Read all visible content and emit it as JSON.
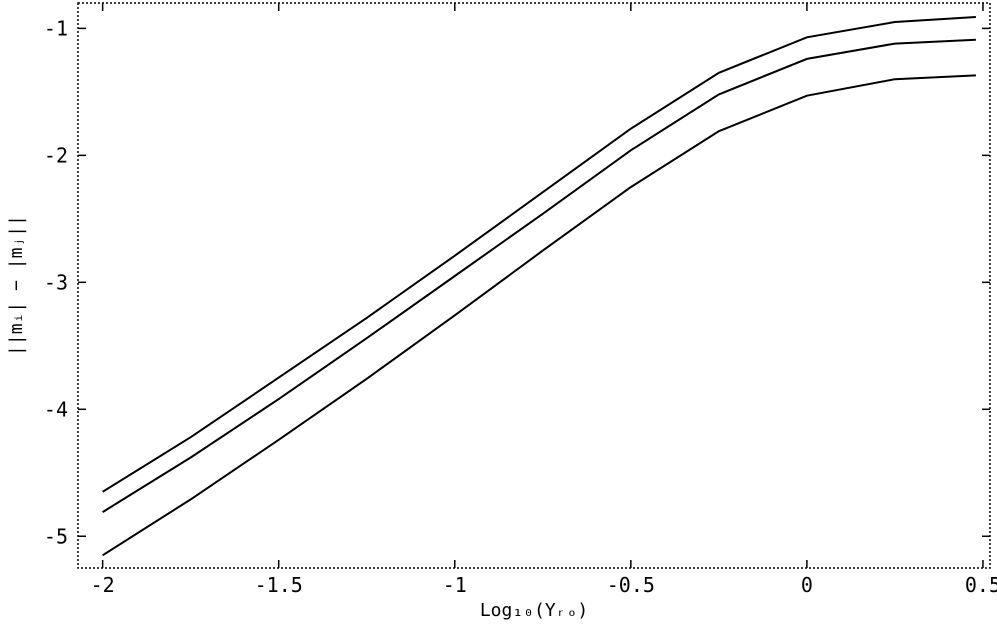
{
  "chart_data": {
    "type": "line",
    "xlabel": "Log₁₀(Yᵣₒ)",
    "ylabel": "||mᵢ| − |mⱼ||",
    "xlim": [
      -2.07,
      0.52
    ],
    "ylim": [
      -5.25,
      -0.8
    ],
    "x_ticks": [
      -2,
      -1.5,
      -1,
      -0.5,
      0,
      0.5
    ],
    "x_tick_labels": [
      "-2",
      "-1.5",
      "-1",
      "-0.5",
      "0",
      "0.5"
    ],
    "y_ticks": [
      -5,
      -4,
      -3,
      -2,
      -1
    ],
    "y_tick_labels": [
      "-5",
      "-4",
      "-3",
      "-2",
      "-1"
    ],
    "grid": false,
    "series": [
      {
        "x": [
          -2.0,
          -1.75,
          -1.5,
          -1.25,
          -1.0,
          -0.75,
          -0.5,
          -0.25,
          0.0,
          0.25,
          0.48
        ],
        "values": [
          -4.65,
          -4.22,
          -3.75,
          -3.28,
          -2.79,
          -2.29,
          -1.79,
          -1.35,
          -1.07,
          -0.95,
          -0.91
        ]
      },
      {
        "x": [
          -2.0,
          -1.75,
          -1.5,
          -1.25,
          -1.0,
          -0.75,
          -0.5,
          -0.25,
          0.0,
          0.25,
          0.48
        ],
        "values": [
          -4.81,
          -4.38,
          -3.92,
          -3.44,
          -2.95,
          -2.46,
          -1.96,
          -1.52,
          -1.24,
          -1.12,
          -1.09
        ]
      },
      {
        "x": [
          -2.0,
          -1.75,
          -1.5,
          -1.25,
          -1.0,
          -0.75,
          -0.5,
          -0.25,
          0.0,
          0.25,
          0.48
        ],
        "values": [
          -5.15,
          -4.71,
          -4.24,
          -3.76,
          -3.26,
          -2.75,
          -2.25,
          -1.81,
          -1.53,
          -1.4,
          -1.37
        ]
      }
    ]
  }
}
